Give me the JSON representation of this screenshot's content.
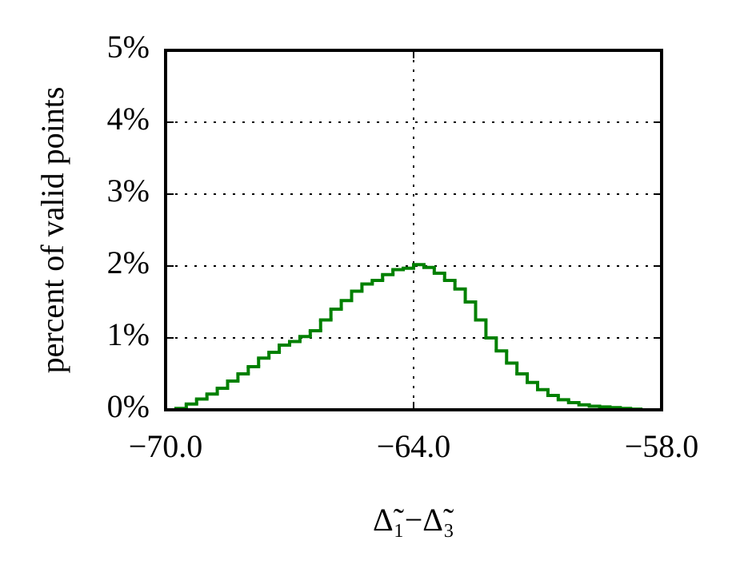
{
  "chart_data": {
    "type": "histogram",
    "color": "#008000",
    "grid": true,
    "ylabel": "percent of valid points",
    "xlabel": "Δ̃₁−Δ̃₃",
    "xlim": [
      -70,
      -58
    ],
    "xticks": [
      {
        "value": -70,
        "label": "−70.0"
      },
      {
        "value": -64,
        "label": "−64.0"
      },
      {
        "value": -58,
        "label": "−58.0"
      }
    ],
    "ylim": [
      0,
      5
    ],
    "yticks": [
      {
        "value": 0,
        "label": "0%"
      },
      {
        "value": 1,
        "label": "1%"
      },
      {
        "value": 2,
        "label": "2%"
      },
      {
        "value": 3,
        "label": "3%"
      },
      {
        "value": 4,
        "label": "4%"
      },
      {
        "value": 5,
        "label": "5%"
      }
    ],
    "bins": [
      -69.75,
      -69.5,
      -69.25,
      -69,
      -68.75,
      -68.5,
      -68.25,
      -68,
      -67.75,
      -67.5,
      -67.25,
      -67,
      -66.75,
      -66.5,
      -66.25,
      -66,
      -65.75,
      -65.5,
      -65.25,
      -65,
      -64.75,
      -64.5,
      -64.25,
      -64,
      -63.75,
      -63.5,
      -63.25,
      -63,
      -62.75,
      -62.5,
      -62.25,
      -62,
      -61.75,
      -61.5,
      -61.25,
      -61,
      -60.75,
      -60.5,
      -60.25,
      -60,
      -59.75,
      -59.5,
      -59.25,
      -59,
      -58.75,
      -58.5
    ],
    "values": [
      0.02,
      0.08,
      0.15,
      0.22,
      0.3,
      0.4,
      0.5,
      0.6,
      0.72,
      0.8,
      0.9,
      0.95,
      1.02,
      1.1,
      1.25,
      1.4,
      1.52,
      1.65,
      1.75,
      1.8,
      1.88,
      1.95,
      1.97,
      2.02,
      1.98,
      1.9,
      1.8,
      1.68,
      1.5,
      1.25,
      1.0,
      0.82,
      0.65,
      0.5,
      0.38,
      0.28,
      0.2,
      0.14,
      0.1,
      0.07,
      0.05,
      0.04,
      0.03,
      0.02,
      0.01
    ]
  }
}
